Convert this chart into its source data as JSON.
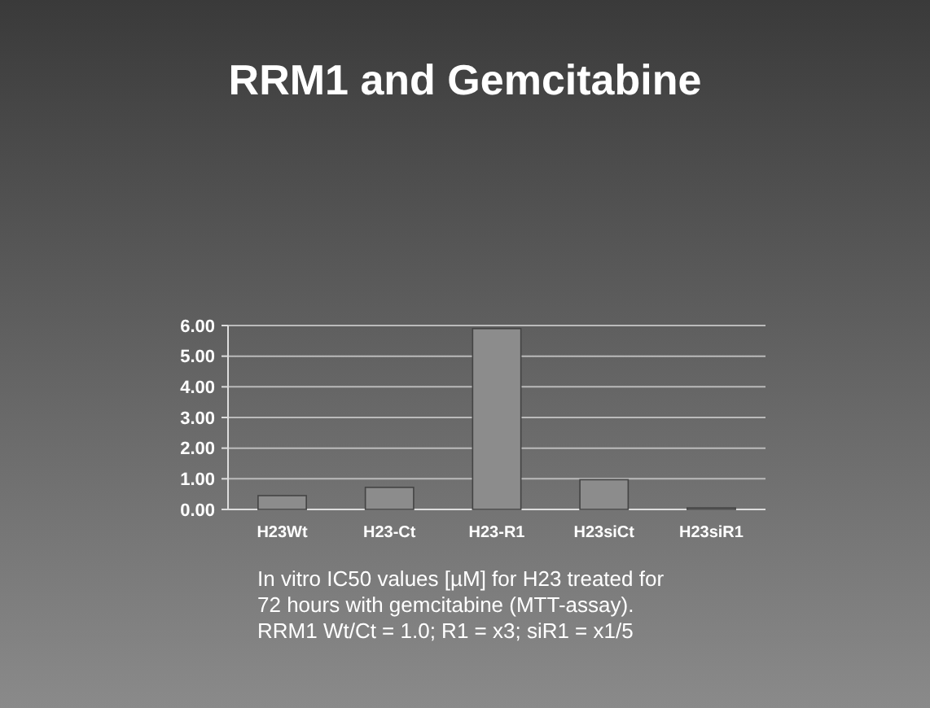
{
  "chart_data": {
    "type": "bar",
    "title": "RRM1 and Gemcitabine",
    "categories": [
      "H23Wt",
      "H23-Ct",
      "H23-R1",
      "H23siCt",
      "H23siR1"
    ],
    "values": [
      0.45,
      0.72,
      5.9,
      0.97,
      0.05
    ],
    "color": "#8c8c8c",
    "ylim": [
      0,
      6
    ],
    "yticks": [
      {
        "value": 0,
        "label": "0.00"
      },
      {
        "value": 1,
        "label": "1.00"
      },
      {
        "value": 2,
        "label": "2.00"
      },
      {
        "value": 3,
        "label": "3.00"
      },
      {
        "value": 4,
        "label": "4.00"
      },
      {
        "value": 5,
        "label": "5.00"
      },
      {
        "value": 6,
        "label": "6.00"
      }
    ],
    "grid": "y",
    "annotations": [
      "In vitro IC50 values [µM] for H23 treated for",
      "72 hours with gemcitabine (MTT-assay).",
      "RRM1 Wt/Ct = 1.0; R1 = x3; siR1 = x1/5"
    ]
  }
}
